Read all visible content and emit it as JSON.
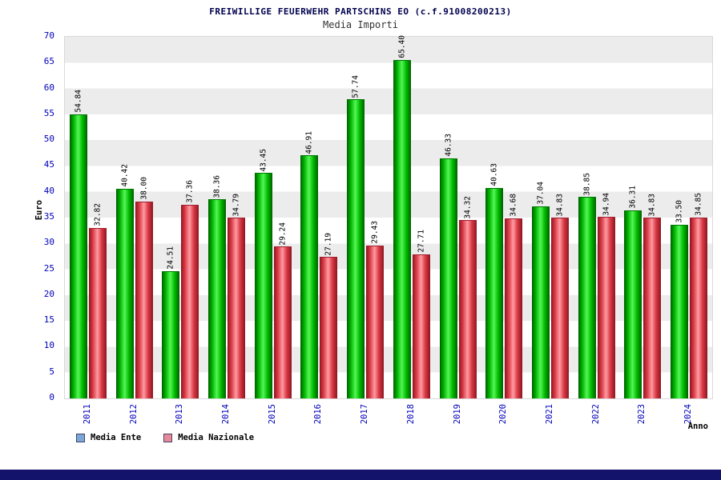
{
  "title": "FREIWILLIGE FEUERWEHR PARTSCHINS EO (c.f.91008200213)",
  "subtitle": "Media Importi",
  "ylabel": "Euro",
  "xlabel": "Anno",
  "legend": [
    {
      "label": "Media Ente",
      "color": "#7aa7d9"
    },
    {
      "label": "Media Nazionale",
      "color": "#e8899a"
    }
  ],
  "colors": {
    "bar_media_ente": "#00cc00",
    "bar_media_nazionale": "#d93a45",
    "axis_text": "#0000bb",
    "title_text": "#00004f",
    "stripe": "#ececec",
    "footer": "#13136b"
  },
  "chart_data": {
    "type": "bar",
    "title": "FREIWILLIGE FEUERWEHR PARTSCHINS EO (c.f.91008200213)",
    "subtitle": "Media Importi",
    "xlabel": "Anno",
    "ylabel": "Euro",
    "ylim": [
      0,
      70
    ],
    "ytick_step": 5,
    "grid": "horizontal-stripes",
    "legend_position": "bottom-left",
    "categories": [
      "2011",
      "2012",
      "2013",
      "2014",
      "2015",
      "2016",
      "2017",
      "2018",
      "2019",
      "2020",
      "2021",
      "2022",
      "2023",
      "2024"
    ],
    "series": [
      {
        "name": "Media Ente",
        "values": [
          54.84,
          40.42,
          24.51,
          38.36,
          43.45,
          46.91,
          57.74,
          65.4,
          46.33,
          40.63,
          37.04,
          38.85,
          36.31,
          33.5
        ]
      },
      {
        "name": "Media Nazionale",
        "values": [
          32.82,
          38.0,
          37.36,
          34.79,
          29.24,
          27.19,
          29.43,
          27.71,
          34.32,
          34.68,
          34.83,
          34.94,
          34.83,
          34.85
        ]
      }
    ]
  }
}
